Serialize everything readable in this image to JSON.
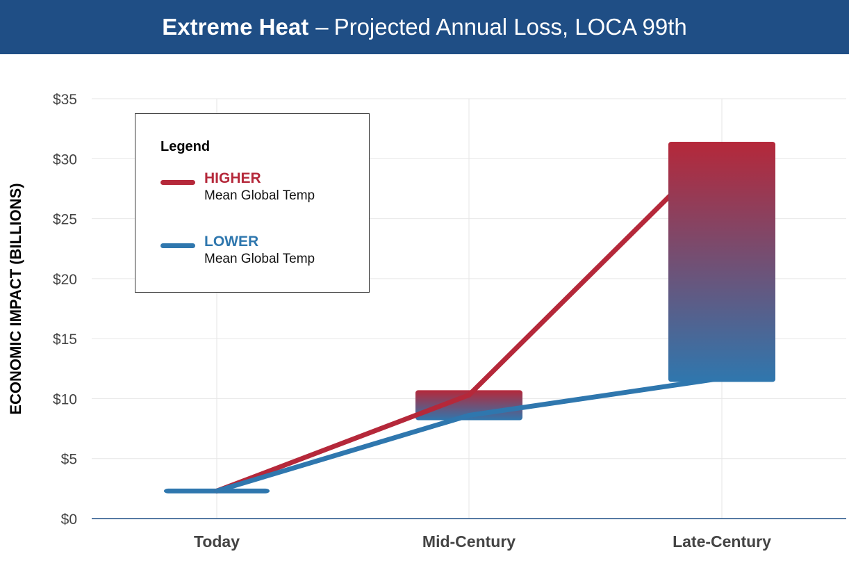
{
  "title": {
    "bold": "Extreme Heat",
    "dash": "–",
    "rest": "Projected Annual Loss, LOCA 99th"
  },
  "colors": {
    "header_bg": "#1f4e85",
    "higher": "#b5283a",
    "lower": "#2f77ae",
    "grid": "#e6e6e6",
    "axis": "#1f4e85"
  },
  "legend": {
    "title": "Legend",
    "items": [
      {
        "key": "higher",
        "name": "HIGHER",
        "sub": "Mean Global Temp"
      },
      {
        "key": "lower",
        "name": "LOWER",
        "sub": "Mean Global Temp"
      }
    ]
  },
  "chart_data": {
    "type": "line",
    "title": "Extreme Heat – Projected Annual Loss, LOCA 99th",
    "ylabel": "ECONOMIC IMPACT (BILLIONS)",
    "xlabel": "",
    "categories": [
      "Today",
      "Mid-Century",
      "Late-Century"
    ],
    "ylim": [
      0,
      35
    ],
    "yticks": [
      0,
      5,
      10,
      15,
      20,
      25,
      30,
      35
    ],
    "ytick_labels": [
      "$0",
      "$5",
      "$10",
      "$15",
      "$20",
      "$25",
      "$30",
      "$35"
    ],
    "grid": true,
    "legend_position": "top-left",
    "series": [
      {
        "name": "HIGHER",
        "values": [
          2.3,
          10.3,
          31.2
        ]
      },
      {
        "name": "LOWER",
        "values": [
          2.3,
          8.6,
          11.7
        ]
      }
    ],
    "ranges": [
      {
        "category": "Today",
        "low": 2.1,
        "high": 2.5
      },
      {
        "category": "Mid-Century",
        "low": 8.2,
        "high": 10.7
      },
      {
        "category": "Late-Century",
        "low": 11.4,
        "high": 31.4
      }
    ]
  }
}
